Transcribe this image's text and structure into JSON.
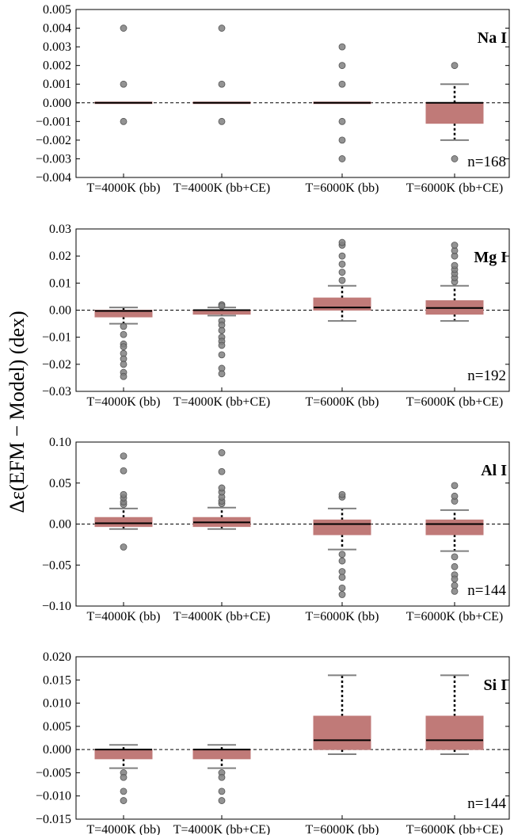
{
  "figure": {
    "ylabel": "Δε(EFM − Model) (dex)",
    "colors": {
      "box_fill": "#c07a78",
      "box_edge": "#c07a78",
      "median": "#000000",
      "whisker_cap": "#808080",
      "outlier": "#808080",
      "zero_line": "#000000"
    }
  },
  "chart_data": [
    {
      "type": "box",
      "element": "Na I",
      "n_label": "n=168",
      "categories": [
        "T=4000K (bb)",
        "T=4000K (bb+CE)",
        "T=6000K (bb)",
        "T=6000K (bb+CE)"
      ],
      "ylim": [
        -0.004,
        0.005
      ],
      "yticks": [
        -0.004,
        -0.003,
        -0.002,
        -0.001,
        0.0,
        0.001,
        0.002,
        0.003,
        0.004,
        0.005
      ],
      "ytick_labels": [
        "−0.004",
        "−0.003",
        "−0.002",
        "−0.001",
        "0.000",
        "0.001",
        "0.002",
        "0.003",
        "0.004",
        "0.005"
      ],
      "boxes": [
        {
          "q1": 0.0,
          "median": 0.0,
          "q3": 0.0,
          "whisker_low": 0.0,
          "whisker_high": 0.0,
          "outliers": [
            0.004,
            0.001,
            -0.001
          ]
        },
        {
          "q1": 0.0,
          "median": 0.0,
          "q3": 0.0,
          "whisker_low": 0.0,
          "whisker_high": 0.0,
          "outliers": [
            0.004,
            0.001,
            -0.001
          ]
        },
        {
          "q1": 0.0,
          "median": 0.0,
          "q3": 0.0,
          "whisker_low": 0.0,
          "whisker_high": 0.0,
          "outliers": [
            0.003,
            0.002,
            0.001,
            -0.001,
            -0.002,
            -0.003
          ]
        },
        {
          "q1": -0.0011,
          "median": 0.0,
          "q3": 0.0,
          "whisker_low": -0.002,
          "whisker_high": 0.001,
          "outliers": [
            0.002,
            -0.003
          ]
        }
      ]
    },
    {
      "type": "box",
      "element": "Mg I",
      "n_label": "n=192",
      "categories": [
        "T=4000K (bb)",
        "T=4000K (bb+CE)",
        "T=6000K (bb)",
        "T=6000K (bb+CE)"
      ],
      "ylim": [
        -0.03,
        0.03
      ],
      "yticks": [
        -0.03,
        -0.02,
        -0.01,
        0.0,
        0.01,
        0.02,
        0.03
      ],
      "ytick_labels": [
        "−0.03",
        "−0.02",
        "−0.01",
        "0.00",
        "0.01",
        "0.02",
        "0.03"
      ],
      "boxes": [
        {
          "q1": -0.0025,
          "median": -0.0003,
          "q3": 0.0,
          "whisker_low": -0.005,
          "whisker_high": 0.001,
          "outliers": [
            -0.006,
            -0.009,
            -0.0125,
            -0.0135,
            -0.016,
            -0.018,
            -0.02,
            -0.023,
            -0.0245
          ]
        },
        {
          "q1": -0.0015,
          "median": 0.0,
          "q3": 0.0,
          "whisker_low": -0.002,
          "whisker_high": 0.001,
          "outliers": [
            0.002,
            0.0015,
            -0.004,
            -0.0055,
            -0.0075,
            -0.01,
            -0.0115,
            -0.013,
            -0.0165,
            -0.0215,
            -0.0235
          ]
        },
        {
          "q1": 0.0,
          "median": 0.001,
          "q3": 0.0045,
          "whisker_low": -0.004,
          "whisker_high": 0.009,
          "outliers": [
            0.011,
            0.014,
            0.017,
            0.02,
            0.024,
            0.025
          ]
        },
        {
          "q1": -0.0015,
          "median": 0.0008,
          "q3": 0.0035,
          "whisker_low": -0.004,
          "whisker_high": 0.009,
          "outliers": [
            0.0105,
            0.012,
            0.0135,
            0.015,
            0.0165,
            0.02,
            0.022,
            0.024
          ]
        }
      ]
    },
    {
      "type": "box",
      "element": "Al I",
      "n_label": "n=144",
      "categories": [
        "T=4000K (bb)",
        "T=4000K (bb+CE)",
        "T=6000K (bb)",
        "T=6000K (bb+CE)"
      ],
      "ylim": [
        -0.1,
        0.1
      ],
      "yticks": [
        -0.1,
        -0.05,
        0.0,
        0.05,
        0.1
      ],
      "ytick_labels": [
        "−0.10",
        "−0.05",
        "0.00",
        "0.05",
        "0.10"
      ],
      "boxes": [
        {
          "q1": -0.003,
          "median": 0.001,
          "q3": 0.008,
          "whisker_low": -0.006,
          "whisker_high": 0.019,
          "outliers": [
            0.024,
            0.027,
            0.032,
            0.036,
            0.065,
            0.083,
            -0.028
          ]
        },
        {
          "q1": -0.003,
          "median": 0.002,
          "q3": 0.008,
          "whisker_low": -0.006,
          "whisker_high": 0.02,
          "outliers": [
            0.025,
            0.028,
            0.033,
            0.039,
            0.044,
            0.064,
            0.087
          ]
        },
        {
          "q1": -0.013,
          "median": 0.0,
          "q3": 0.005,
          "whisker_low": -0.031,
          "whisker_high": 0.019,
          "outliers": [
            0.033,
            0.036,
            -0.037,
            -0.045,
            -0.058,
            -0.065,
            -0.078,
            -0.086
          ]
        },
        {
          "q1": -0.013,
          "median": 0.0,
          "q3": 0.005,
          "whisker_low": -0.033,
          "whisker_high": 0.017,
          "outliers": [
            0.028,
            0.034,
            0.047,
            -0.04,
            -0.052,
            -0.062,
            -0.067,
            -0.075,
            -0.082
          ]
        }
      ]
    },
    {
      "type": "box",
      "element": "Si I",
      "n_label": "n=144",
      "categories": [
        "T=4000K (bb)",
        "T=4000K (bb+CE)",
        "T=6000K (bb)",
        "T=6000K (bb+CE)"
      ],
      "ylim": [
        -0.015,
        0.02
      ],
      "yticks": [
        -0.015,
        -0.01,
        -0.005,
        0.0,
        0.005,
        0.01,
        0.015,
        0.02
      ],
      "ytick_labels": [
        "−0.015",
        "−0.010",
        "−0.005",
        "0.000",
        "0.005",
        "0.010",
        "0.015",
        "0.020"
      ],
      "boxes": [
        {
          "q1": -0.002,
          "median": 0.0,
          "q3": 0.0,
          "whisker_low": -0.004,
          "whisker_high": 0.001,
          "outliers": [
            -0.005,
            -0.006,
            -0.009,
            -0.011
          ]
        },
        {
          "q1": -0.002,
          "median": 0.0,
          "q3": 0.0,
          "whisker_low": -0.004,
          "whisker_high": 0.001,
          "outliers": [
            -0.005,
            -0.006,
            -0.009,
            -0.011
          ]
        },
        {
          "q1": 0.0,
          "median": 0.002,
          "q3": 0.0072,
          "whisker_low": -0.001,
          "whisker_high": 0.016,
          "outliers": []
        },
        {
          "q1": 0.0,
          "median": 0.002,
          "q3": 0.0072,
          "whisker_low": -0.001,
          "whisker_high": 0.016,
          "outliers": []
        }
      ]
    }
  ]
}
